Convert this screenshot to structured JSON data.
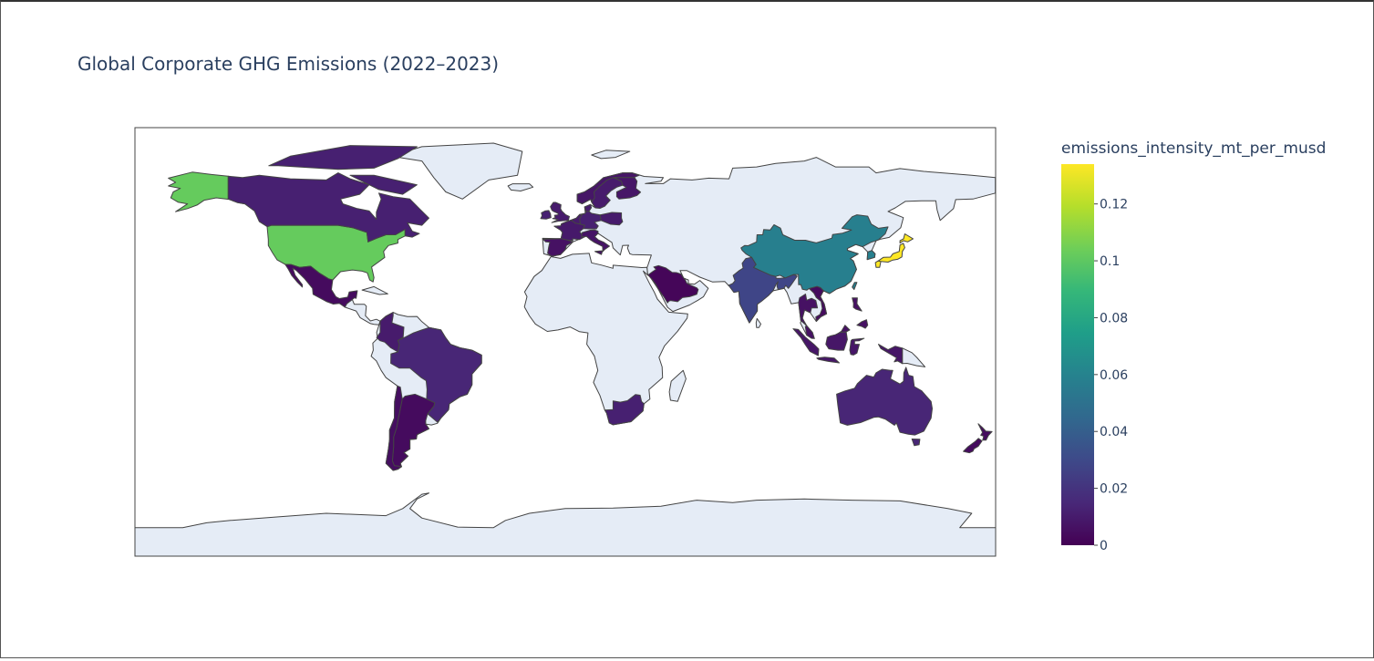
{
  "chart_data": {
    "type": "choropleth",
    "title": "Global Corporate GHG Emissions (2022–2023)",
    "colorbar_title": "emissions_intensity_mt_per_musd",
    "colorscale": "viridis",
    "projection": "equirectangular",
    "locations": [
      "USA",
      "CAN",
      "MEX",
      "COL",
      "BRA",
      "ARG",
      "CHL",
      "GBR",
      "IRL",
      "FRA",
      "ESP",
      "DEU",
      "NLD",
      "ITA",
      "POL",
      "DNK",
      "NOR",
      "SWE",
      "FIN",
      "SAU",
      "IND",
      "CHN",
      "KOR",
      "JPN",
      "THA",
      "VNM",
      "MYS",
      "IDN",
      "PHL",
      "AUS",
      "NZL",
      "ZAF"
    ],
    "values": [
      0.102,
      0.012,
      0.004,
      0.01,
      0.014,
      0.004,
      0.005,
      0.01,
      0.012,
      0.009,
      0.006,
      0.012,
      0.01,
      0.007,
      0.01,
      0.01,
      0.008,
      0.01,
      0.008,
      0.002,
      0.028,
      0.058,
      0.058,
      0.134,
      0.006,
      0.004,
      0.006,
      0.008,
      0.006,
      0.014,
      0.004,
      0.012
    ],
    "zlim": [
      0,
      0.134
    ],
    "zticks": [
      0,
      0.02,
      0.04,
      0.06,
      0.08,
      0.1,
      0.12
    ]
  }
}
